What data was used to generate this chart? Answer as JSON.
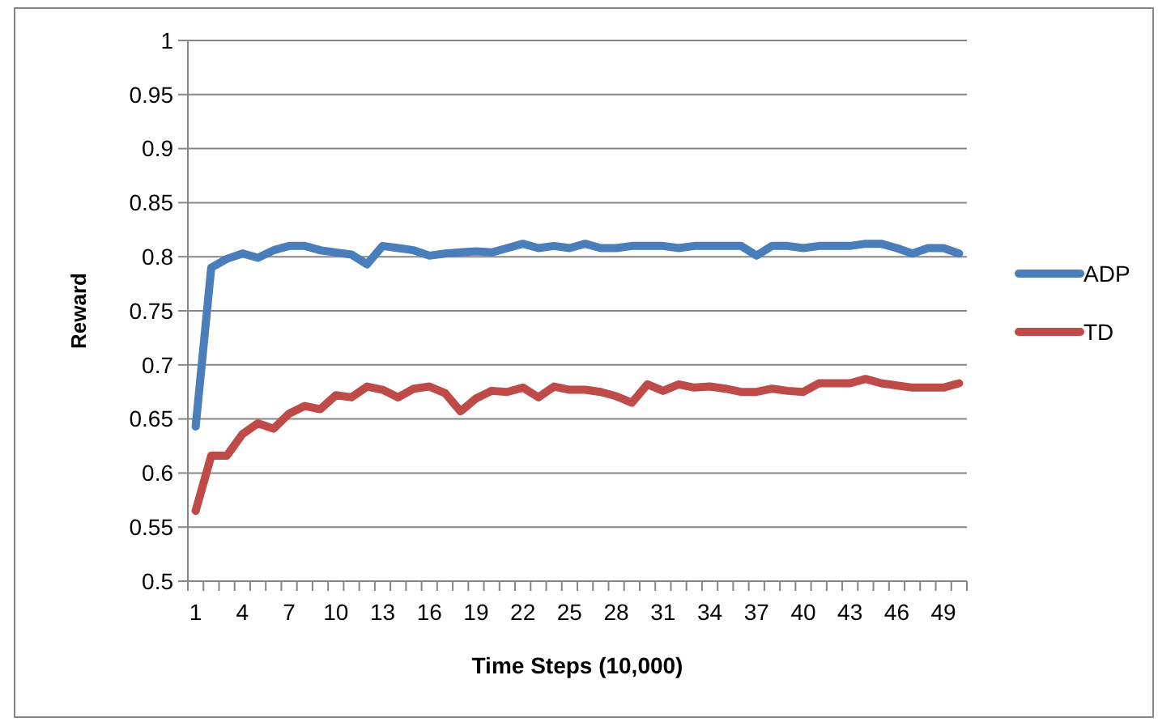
{
  "chart_data": {
    "type": "line",
    "xlabel": "Time Steps (10,000)",
    "ylabel": "Reward",
    "categories": [
      "1",
      null,
      null,
      "4",
      null,
      null,
      "7",
      null,
      null,
      "10",
      null,
      null,
      "13",
      null,
      null,
      "16",
      null,
      null,
      "19",
      null,
      null,
      "22",
      null,
      null,
      "25",
      null,
      null,
      "28",
      null,
      null,
      "31",
      null,
      null,
      "34",
      null,
      null,
      "37",
      null,
      null,
      "40",
      null,
      null,
      "43",
      null,
      null,
      "46",
      null,
      null,
      "49",
      null
    ],
    "series": [
      {
        "name": "ADP",
        "color": "#4a7ebb",
        "values": [
          0.643,
          0.79,
          0.798,
          0.803,
          0.799,
          0.806,
          0.81,
          0.81,
          0.806,
          0.804,
          0.802,
          0.793,
          0.81,
          0.808,
          0.806,
          0.801,
          0.803,
          0.804,
          0.805,
          0.804,
          0.808,
          0.812,
          0.808,
          0.81,
          0.808,
          0.812,
          0.808,
          0.808,
          0.81,
          0.81,
          0.81,
          0.808,
          0.81,
          0.81,
          0.81,
          0.81,
          0.801,
          0.81,
          0.81,
          0.808,
          0.81,
          0.81,
          0.81,
          0.812,
          0.812,
          0.808,
          0.803,
          0.808,
          0.808,
          0.803
        ]
      },
      {
        "name": "TD",
        "color": "#be4b48",
        "values": [
          0.565,
          0.616,
          0.616,
          0.636,
          0.646,
          0.641,
          0.655,
          0.662,
          0.659,
          0.672,
          0.67,
          0.68,
          0.677,
          0.67,
          0.678,
          0.68,
          0.674,
          0.657,
          0.669,
          0.676,
          0.675,
          0.679,
          0.67,
          0.68,
          0.677,
          0.677,
          0.675,
          0.671,
          0.665,
          0.682,
          0.676,
          0.682,
          0.679,
          0.68,
          0.678,
          0.675,
          0.675,
          0.678,
          0.676,
          0.675,
          0.683,
          0.683,
          0.683,
          0.687,
          0.683,
          0.681,
          0.679,
          0.679,
          0.679,
          0.683
        ]
      }
    ],
    "ylim": [
      0.5,
      1
    ],
    "yticks": [
      0.5,
      0.55,
      0.6,
      0.65,
      0.7,
      0.75,
      0.8,
      0.85,
      0.9,
      0.95,
      1
    ],
    "grid": "y",
    "legend": "right",
    "marker": "none",
    "line_style": "solid"
  }
}
